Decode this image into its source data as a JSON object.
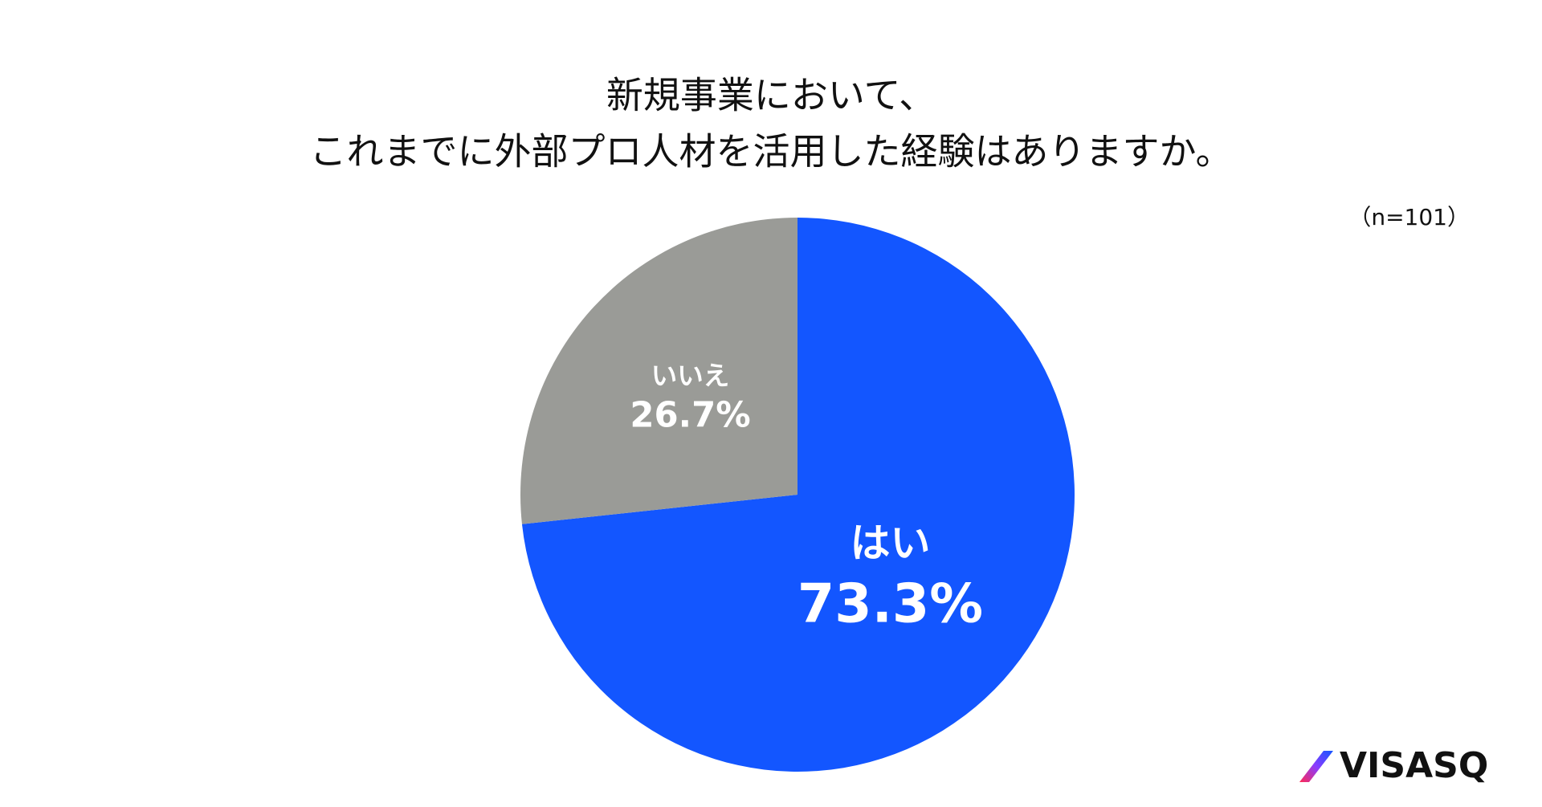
{
  "chart_data": {
    "type": "pie",
    "title": [
      "新規事業において、",
      "これまでに外部プロ人材を活用した経験はありますか。"
    ],
    "note": "（n=101）",
    "categories": [
      "はい",
      "いいえ"
    ],
    "values": [
      73.3,
      26.7
    ],
    "value_labels": [
      "73.3%",
      "26.7%"
    ],
    "colors": [
      "#1356ff",
      "#9a9b97"
    ],
    "logo": "VISASQ"
  }
}
